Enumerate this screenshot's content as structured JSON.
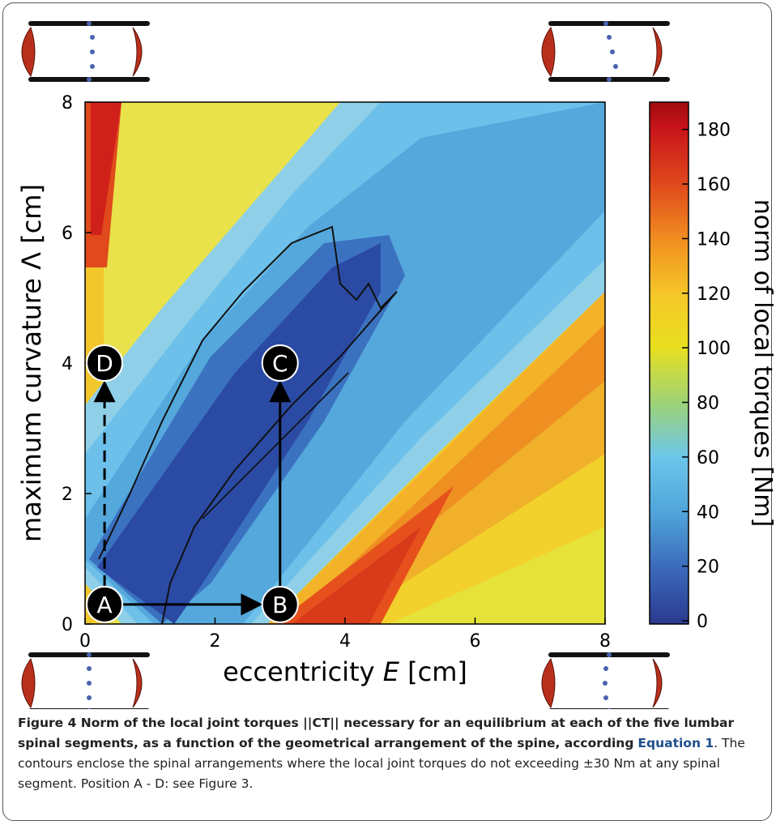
{
  "chart_data": {
    "type": "heatmap",
    "xlabel_prefix": "eccentricity ",
    "xlabel_var": "E",
    "xlabel_unit": " [cm]",
    "ylabel_prefix": "maximum curvature ",
    "ylabel_var": "Λ",
    "ylabel_unit": " [cm]",
    "xlim": [
      0,
      8
    ],
    "ylim": [
      0,
      8
    ],
    "xticks": [
      "0",
      "2",
      "4",
      "6",
      "8"
    ],
    "yticks": [
      "0",
      "2",
      "4",
      "6",
      "8"
    ],
    "colorbar": {
      "label": "norm of local torques [Nm]",
      "range": [
        0,
        190
      ],
      "ticks": [
        "0",
        "20",
        "40",
        "60",
        "80",
        "100",
        "120",
        "140",
        "160",
        "180"
      ],
      "colormap": [
        "#2b3a8f",
        "#3a66b8",
        "#4fa3da",
        "#6cc6ea",
        "#9bd27a",
        "#e8e020",
        "#f6c828",
        "#f08c20",
        "#e04a1c",
        "#c8141a",
        "#a00c10"
      ]
    },
    "contour_level_nm": 30,
    "points": [
      {
        "label": "A",
        "x": 0.3,
        "y": 0.3
      },
      {
        "label": "B",
        "x": 3.0,
        "y": 0.3
      },
      {
        "label": "C",
        "x": 3.0,
        "y": 4.0
      },
      {
        "label": "D",
        "x": 0.3,
        "y": 4.0
      }
    ],
    "arrows": [
      {
        "from": "A",
        "to": "B",
        "style": "solid"
      },
      {
        "from": "B",
        "to": "C",
        "style": "solid"
      },
      {
        "from": "A",
        "to": "D",
        "style": "dashed"
      }
    ]
  },
  "caption": {
    "title": "Figure 4 Norm of the local joint torques ||CT|| necessary for an equilibrium at each of the five lumbar spinal segments, as a function of the geometrical arrangement of the spine, according",
    "equation_ref": "Equation 1",
    "body": ". The contours enclose the spinal arrangements where the local joint torques do not exceeding ±30 Nm at any spinal segment. Position A - D: see Figure 3."
  },
  "colors": {
    "segment_bar": "#111111",
    "segment_disc": "#b8301c",
    "segment_dots": "#4a62b0",
    "marker_fill": "#000000",
    "marker_text": "#ffffff"
  }
}
